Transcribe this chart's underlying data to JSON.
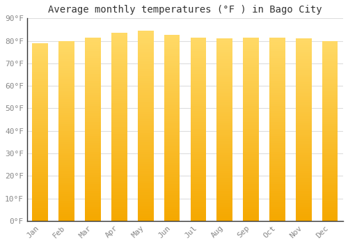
{
  "title": "Average monthly temperatures (°F ) in Bago City",
  "months": [
    "Jan",
    "Feb",
    "Mar",
    "Apr",
    "May",
    "Jun",
    "Jul",
    "Aug",
    "Sep",
    "Oct",
    "Nov",
    "Dec"
  ],
  "values": [
    79,
    80,
    81.5,
    83.5,
    84.5,
    82.5,
    81.5,
    81,
    81.5,
    81.5,
    81,
    80
  ],
  "ylim": [
    0,
    90
  ],
  "yticks": [
    0,
    10,
    20,
    30,
    40,
    50,
    60,
    70,
    80,
    90
  ],
  "ytick_labels": [
    "0°F",
    "10°F",
    "20°F",
    "30°F",
    "40°F",
    "50°F",
    "60°F",
    "70°F",
    "80°F",
    "90°F"
  ],
  "bar_color_bottom": "#F5A800",
  "bar_color_top": "#FFD966",
  "bar_width": 0.6,
  "background_color": "#FFFFFF",
  "grid_color": "#DDDDDD",
  "title_fontsize": 10,
  "tick_fontsize": 8,
  "font_family": "monospace"
}
